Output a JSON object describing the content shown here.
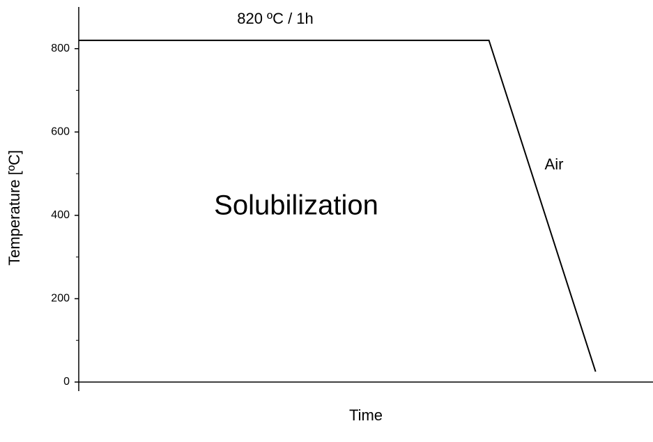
{
  "chart_data": {
    "type": "line",
    "x_label": "Time",
    "y_label": "Temperature [ºC]",
    "annotations": [
      "820 ºC / 1h",
      "Air",
      "Solubilization"
    ],
    "x": [
      0,
      1,
      1.26
    ],
    "series": [
      {
        "color": "#000000",
        "values": [
          820,
          820,
          25
        ]
      }
    ],
    "xlim": [
      0,
      1.4
    ],
    "ylim": [
      0,
      900
    ],
    "yticks": [
      0,
      200,
      400,
      600,
      800
    ],
    "yminorticks": [
      100,
      300,
      500,
      700
    ]
  }
}
